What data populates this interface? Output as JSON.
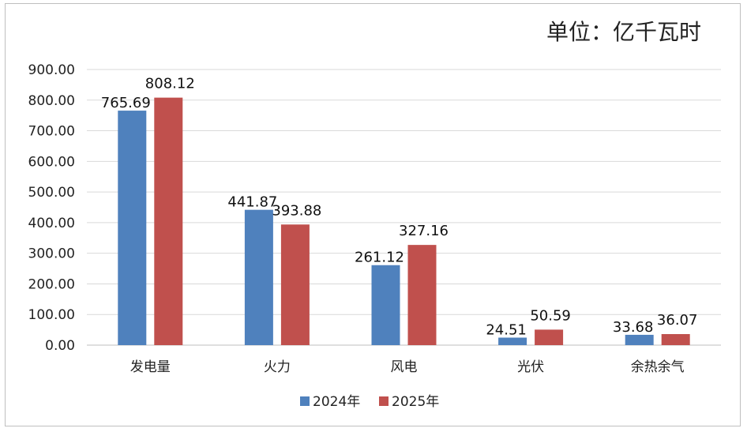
{
  "chart_data": {
    "type": "bar",
    "title": "",
    "unit_label": "单位：亿千瓦时",
    "categories": [
      "发电量",
      "火力",
      "风电",
      "光伏",
      "余热余气"
    ],
    "series": [
      {
        "name": "2024年",
        "color": "#4f81bd",
        "values": [
          765.69,
          441.87,
          261.12,
          24.51,
          33.68
        ],
        "labels": [
          "765.69",
          "441.87",
          "261.12",
          "24.51",
          "33.68"
        ]
      },
      {
        "name": "2025年",
        "color": "#c0504d",
        "values": [
          808.12,
          393.88,
          327.16,
          50.59,
          36.07
        ],
        "labels": [
          "808.12",
          "393.88",
          "327.16",
          "50.59",
          "36.07"
        ]
      }
    ],
    "ylim": [
      0,
      900
    ],
    "yticks": [
      "0.00",
      "100.00",
      "200.00",
      "300.00",
      "400.00",
      "500.00",
      "600.00",
      "700.00",
      "800.00",
      "900.00"
    ],
    "grid": true,
    "legend_position": "bottom"
  }
}
